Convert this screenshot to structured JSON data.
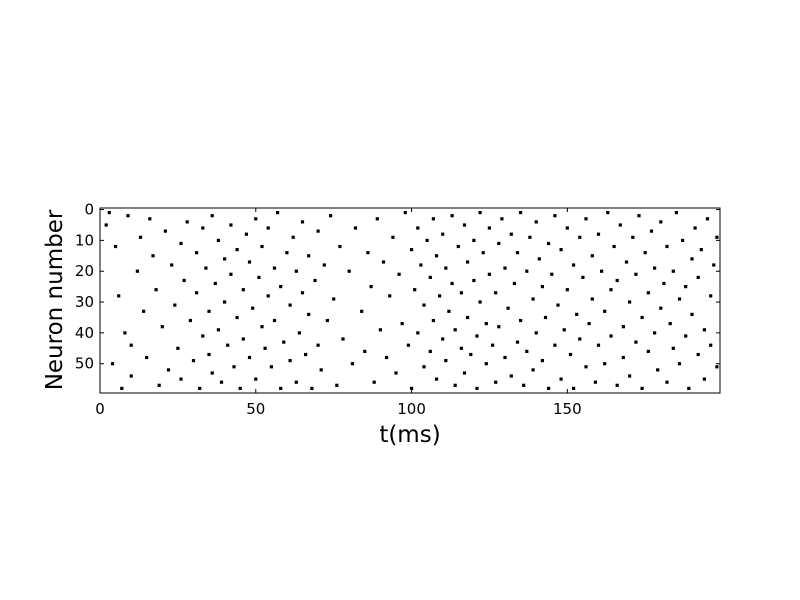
{
  "chart_data": {
    "type": "scatter",
    "title": "",
    "xlabel": "t(ms)",
    "ylabel": "Neuron number",
    "xlim": [
      0,
      199
    ],
    "ylim": [
      59.5,
      -0.5
    ],
    "y_inverted": true,
    "neuron_count": 60,
    "xticks": [
      0,
      50,
      100,
      150
    ],
    "yticks": [
      0,
      10,
      20,
      30,
      40,
      50
    ],
    "xtick_labels": [
      "0",
      "50",
      "100",
      "150"
    ],
    "ytick_labels": [
      "0",
      "10",
      "20",
      "30",
      "40",
      "50"
    ],
    "grid": false,
    "marker_color": "#000000",
    "series": [
      {
        "points": [
          [
            2,
            5
          ],
          [
            3,
            1
          ],
          [
            4,
            50
          ],
          [
            5,
            12
          ],
          [
            6,
            28
          ],
          [
            7,
            58
          ],
          [
            8,
            40
          ],
          [
            9,
            2
          ],
          [
            10,
            44
          ],
          [
            10,
            54
          ],
          [
            12,
            20
          ],
          [
            13,
            9
          ],
          [
            14,
            33
          ],
          [
            15,
            48
          ],
          [
            16,
            3
          ],
          [
            17,
            15
          ],
          [
            18,
            26
          ],
          [
            19,
            57
          ],
          [
            20,
            38
          ],
          [
            21,
            7
          ],
          [
            22,
            52
          ],
          [
            23,
            18
          ],
          [
            24,
            31
          ],
          [
            25,
            45
          ],
          [
            26,
            11
          ],
          [
            26,
            55
          ],
          [
            27,
            23
          ],
          [
            28,
            4
          ],
          [
            29,
            36
          ],
          [
            30,
            49
          ],
          [
            31,
            14
          ],
          [
            31,
            27
          ],
          [
            32,
            58
          ],
          [
            33,
            41
          ],
          [
            33,
            6
          ],
          [
            34,
            19
          ],
          [
            35,
            47
          ],
          [
            35,
            33
          ],
          [
            36,
            2
          ],
          [
            36,
            53
          ],
          [
            37,
            24
          ],
          [
            38,
            10
          ],
          [
            38,
            39
          ],
          [
            39,
            56
          ],
          [
            40,
            16
          ],
          [
            40,
            30
          ],
          [
            41,
            44
          ],
          [
            42,
            5
          ],
          [
            42,
            21
          ],
          [
            43,
            51
          ],
          [
            44,
            35
          ],
          [
            44,
            13
          ],
          [
            45,
            58
          ],
          [
            46,
            26
          ],
          [
            46,
            42
          ],
          [
            47,
            8
          ],
          [
            48,
            17
          ],
          [
            48,
            48
          ],
          [
            49,
            32
          ],
          [
            50,
            3
          ],
          [
            50,
            55
          ],
          [
            51,
            22
          ],
          [
            52,
            38
          ],
          [
            52,
            12
          ],
          [
            53,
            45
          ],
          [
            54,
            28
          ],
          [
            54,
            6
          ],
          [
            55,
            51
          ],
          [
            56,
            19
          ],
          [
            56,
            36
          ],
          [
            57,
            1
          ],
          [
            58,
            58
          ],
          [
            58,
            25
          ],
          [
            59,
            43
          ],
          [
            60,
            14
          ],
          [
            61,
            31
          ],
          [
            61,
            49
          ],
          [
            62,
            9
          ],
          [
            63,
            20
          ],
          [
            63,
            56
          ],
          [
            64,
            40
          ],
          [
            65,
            4
          ],
          [
            65,
            27
          ],
          [
            66,
            47
          ],
          [
            67,
            15
          ],
          [
            67,
            34
          ],
          [
            68,
            58
          ],
          [
            69,
            23
          ],
          [
            70,
            7
          ],
          [
            70,
            44
          ],
          [
            71,
            52
          ],
          [
            72,
            18
          ],
          [
            73,
            36
          ],
          [
            74,
            2
          ],
          [
            75,
            29
          ],
          [
            76,
            57
          ],
          [
            77,
            12
          ],
          [
            78,
            42
          ],
          [
            80,
            20
          ],
          [
            81,
            50
          ],
          [
            82,
            6
          ],
          [
            84,
            33
          ],
          [
            85,
            46
          ],
          [
            86,
            14
          ],
          [
            87,
            25
          ],
          [
            88,
            56
          ],
          [
            89,
            3
          ],
          [
            90,
            39
          ],
          [
            91,
            17
          ],
          [
            92,
            48
          ],
          [
            93,
            28
          ],
          [
            94,
            9
          ],
          [
            95,
            53
          ],
          [
            96,
            21
          ],
          [
            97,
            37
          ],
          [
            98,
            1
          ],
          [
            99,
            44
          ],
          [
            100,
            13
          ],
          [
            100,
            58
          ],
          [
            101,
            26
          ],
          [
            102,
            6
          ],
          [
            102,
            40
          ],
          [
            103,
            18
          ],
          [
            104,
            51
          ],
          [
            104,
            31
          ],
          [
            105,
            10
          ],
          [
            106,
            46
          ],
          [
            106,
            22
          ],
          [
            107,
            3
          ],
          [
            107,
            36
          ],
          [
            108,
            15
          ],
          [
            108,
            55
          ],
          [
            109,
            28
          ],
          [
            110,
            42
          ],
          [
            110,
            8
          ],
          [
            111,
            19
          ],
          [
            111,
            49
          ],
          [
            112,
            33
          ],
          [
            113,
            2
          ],
          [
            113,
            24
          ],
          [
            114,
            57
          ],
          [
            114,
            39
          ],
          [
            115,
            12
          ],
          [
            116,
            45
          ],
          [
            116,
            27
          ],
          [
            117,
            5
          ],
          [
            117,
            53
          ],
          [
            118,
            17
          ],
          [
            118,
            35
          ],
          [
            119,
            47
          ],
          [
            120,
            10
          ],
          [
            120,
            23
          ],
          [
            121,
            58
          ],
          [
            121,
            41
          ],
          [
            122,
            1
          ],
          [
            122,
            30
          ],
          [
            123,
            14
          ],
          [
            124,
            50
          ],
          [
            124,
            37
          ],
          [
            125,
            6
          ],
          [
            125,
            21
          ],
          [
            126,
            44
          ],
          [
            127,
            27
          ],
          [
            127,
            56
          ],
          [
            128,
            11
          ],
          [
            128,
            38
          ],
          [
            129,
            3
          ],
          [
            130,
            19
          ],
          [
            130,
            48
          ],
          [
            131,
            32
          ],
          [
            132,
            8
          ],
          [
            132,
            54
          ],
          [
            133,
            24
          ],
          [
            134,
            43
          ],
          [
            134,
            14
          ],
          [
            135,
            1
          ],
          [
            135,
            36
          ],
          [
            136,
            57
          ],
          [
            137,
            20
          ],
          [
            137,
            46
          ],
          [
            138,
            9
          ],
          [
            139,
            29
          ],
          [
            139,
            52
          ],
          [
            140,
            4
          ],
          [
            140,
            40
          ],
          [
            141,
            16
          ],
          [
            142,
            49
          ],
          [
            142,
            25
          ],
          [
            143,
            35
          ],
          [
            144,
            11
          ],
          [
            144,
            58
          ],
          [
            145,
            21
          ],
          [
            146,
            44
          ],
          [
            146,
            2
          ],
          [
            147,
            31
          ],
          [
            148,
            55
          ],
          [
            148,
            13
          ],
          [
            149,
            39
          ],
          [
            150,
            6
          ],
          [
            150,
            26
          ],
          [
            151,
            47
          ],
          [
            152,
            18
          ],
          [
            152,
            58
          ],
          [
            153,
            34
          ],
          [
            154,
            9
          ],
          [
            154,
            42
          ],
          [
            155,
            22
          ],
          [
            156,
            51
          ],
          [
            156,
            3
          ],
          [
            157,
            37
          ],
          [
            158,
            15
          ],
          [
            158,
            29
          ],
          [
            159,
            56
          ],
          [
            160,
            8
          ],
          [
            160,
            44
          ],
          [
            161,
            20
          ],
          [
            162,
            33
          ],
          [
            162,
            50
          ],
          [
            163,
            1
          ],
          [
            164,
            26
          ],
          [
            164,
            41
          ],
          [
            165,
            12
          ],
          [
            166,
            57
          ],
          [
            166,
            23
          ],
          [
            167,
            5
          ],
          [
            168,
            38
          ],
          [
            168,
            48
          ],
          [
            169,
            17
          ],
          [
            170,
            30
          ],
          [
            170,
            54
          ],
          [
            171,
            9
          ],
          [
            172,
            43
          ],
          [
            172,
            21
          ],
          [
            173,
            2
          ],
          [
            174,
            35
          ],
          [
            174,
            58
          ],
          [
            175,
            14
          ],
          [
            176,
            46
          ],
          [
            176,
            27
          ],
          [
            177,
            7
          ],
          [
            178,
            40
          ],
          [
            178,
            19
          ],
          [
            179,
            52
          ],
          [
            180,
            32
          ],
          [
            180,
            4
          ],
          [
            181,
            24
          ],
          [
            182,
            56
          ],
          [
            182,
            12
          ],
          [
            183,
            37
          ],
          [
            184,
            45
          ],
          [
            184,
            20
          ],
          [
            185,
            1
          ],
          [
            186,
            29
          ],
          [
            186,
            50
          ],
          [
            187,
            10
          ],
          [
            188,
            41
          ],
          [
            188,
            25
          ],
          [
            189,
            58
          ],
          [
            190,
            16
          ],
          [
            190,
            34
          ],
          [
            191,
            6
          ],
          [
            192,
            47
          ],
          [
            192,
            22
          ],
          [
            193,
            13
          ],
          [
            194,
            39
          ],
          [
            194,
            55
          ],
          [
            195,
            3
          ],
          [
            196,
            28
          ],
          [
            196,
            44
          ],
          [
            197,
            18
          ],
          [
            198,
            51
          ],
          [
            198,
            9
          ]
        ]
      }
    ]
  }
}
